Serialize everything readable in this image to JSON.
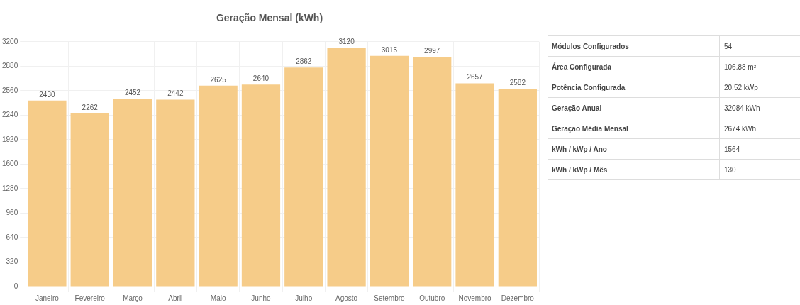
{
  "chart_data": [
    {
      "type": "bar",
      "title": "Geração Mensal (kWh)",
      "categories": [
        "Janeiro",
        "Fevereiro",
        "Março",
        "Abril",
        "Maio",
        "Junho",
        "Julho",
        "Agosto",
        "Setembro",
        "Outubro",
        "Novembro",
        "Dezembro"
      ],
      "values": [
        2430,
        2262,
        2452,
        2442,
        2625,
        2640,
        2862,
        3120,
        3015,
        2997,
        2657,
        2582
      ],
      "color": "#f6cc89",
      "ylim": [
        0,
        3200
      ],
      "yticks": [
        0,
        320,
        640,
        960,
        1280,
        1600,
        1920,
        2240,
        2560,
        2880,
        3200
      ],
      "grid": true,
      "data_labels": true
    },
    {
      "type": "other",
      "categories": [
        "Módulos Configurados",
        "Área Configurada",
        "Potência Configurada",
        "Geração Anual",
        "Geração Média Mensal",
        "kWh / kWp / Ano",
        "kWh / kWp / Mês"
      ],
      "value_labels": [
        "54",
        "106.88 m²",
        "20.52 kWp",
        "32084 kWh",
        "2674 kWh",
        "1564",
        "130"
      ]
    }
  ]
}
